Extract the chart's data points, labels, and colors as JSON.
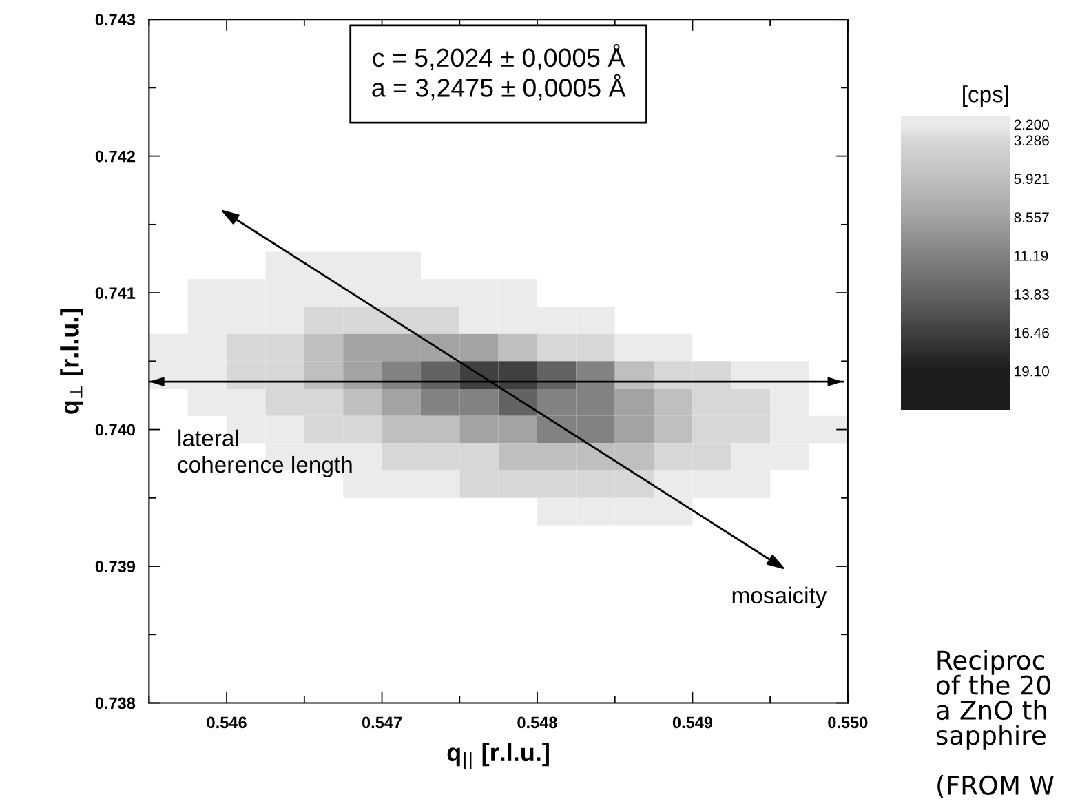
{
  "chart_data": {
    "type": "heatmap",
    "xlabel": "q$_{||}$ [r.l.u.]",
    "ylabel": "q$_{⊥}$ [r.l.u.]",
    "clabel": "[cps]",
    "x": [
      0.545625,
      0.545875,
      0.546125,
      0.546375,
      0.546625,
      0.546875,
      0.547125,
      0.547375,
      0.547625,
      0.547875,
      0.548125,
      0.548375,
      0.548625,
      0.548875,
      0.549125,
      0.549375,
      0.549625,
      0.549875
    ],
    "y": [
      0.7412,
      0.741,
      0.7408,
      0.7406,
      0.7404,
      0.7402,
      0.74,
      0.7398,
      0.7396,
      0.7394
    ],
    "cells": [
      [
        null,
        null,
        null,
        2.2,
        2.2,
        2.2,
        2.2,
        null,
        null,
        null,
        null,
        null,
        null,
        null,
        null,
        null,
        null,
        null
      ],
      [
        null,
        2.2,
        2.2,
        2.2,
        2.2,
        2.2,
        2.2,
        2.2,
        2.2,
        2.2,
        null,
        null,
        null,
        null,
        null,
        null,
        null,
        null
      ],
      [
        null,
        2.2,
        2.2,
        2.2,
        3.286,
        3.286,
        3.286,
        3.286,
        2.2,
        2.2,
        2.2,
        2.2,
        null,
        null,
        null,
        null,
        null,
        null
      ],
      [
        2.2,
        2.2,
        3.286,
        3.286,
        5.921,
        8.557,
        8.557,
        8.557,
        8.557,
        5.921,
        3.286,
        3.286,
        2.2,
        2.2,
        null,
        null,
        null,
        null
      ],
      [
        2.2,
        2.2,
        3.286,
        3.286,
        5.921,
        8.557,
        11.19,
        13.83,
        16.46,
        16.46,
        13.83,
        11.19,
        5.921,
        3.286,
        3.286,
        2.2,
        2.2,
        null
      ],
      [
        null,
        2.2,
        2.2,
        3.286,
        3.286,
        5.921,
        8.557,
        11.19,
        11.19,
        13.83,
        11.19,
        11.19,
        8.557,
        5.921,
        3.286,
        3.286,
        2.2,
        null
      ],
      [
        null,
        null,
        2.2,
        2.2,
        3.286,
        3.286,
        5.921,
        5.921,
        8.557,
        8.557,
        11.19,
        11.19,
        8.557,
        5.921,
        3.286,
        3.286,
        2.2,
        2.2
      ],
      [
        null,
        null,
        null,
        2.2,
        2.2,
        2.2,
        3.286,
        3.286,
        3.286,
        5.921,
        5.921,
        5.921,
        5.921,
        3.286,
        3.286,
        2.2,
        2.2,
        null
      ],
      [
        null,
        null,
        null,
        null,
        null,
        2.2,
        2.2,
        2.2,
        3.286,
        3.286,
        3.286,
        3.286,
        3.286,
        2.2,
        2.2,
        2.2,
        null,
        null
      ],
      [
        null,
        null,
        null,
        null,
        null,
        null,
        null,
        null,
        null,
        null,
        2.2,
        2.2,
        2.2,
        2.2,
        null,
        null,
        null,
        null
      ]
    ],
    "colors": [
      "#ebebeb",
      "#d6d6d6",
      "#bfbfbf",
      "#a3a3a3",
      "#828282",
      "#636363",
      "#404040",
      "#1c1c1c"
    ],
    "clim": [
      1.6,
      21.74
    ],
    "cticks": [
      {
        "value": 2.2,
        "label": "2.200"
      },
      {
        "value": 3.286,
        "label": "3.286"
      },
      {
        "value": 5.921,
        "label": "5.921"
      },
      {
        "value": 8.557,
        "label": "8.557"
      },
      {
        "value": 11.19,
        "label": "11.19"
      },
      {
        "value": 13.83,
        "label": "13.83"
      },
      {
        "value": 16.46,
        "label": "16.46"
      },
      {
        "value": 19.1,
        "label": "19.10"
      }
    ],
    "xlim": [
      0.5455,
      0.55
    ],
    "ylim": [
      0.738,
      0.743
    ],
    "xticks": [
      {
        "value": 0.546,
        "label": "0.546"
      },
      {
        "value": 0.547,
        "label": "0.547"
      },
      {
        "value": 0.548,
        "label": "0.548"
      },
      {
        "value": 0.549,
        "label": "0.549"
      },
      {
        "value": 0.55,
        "label": "0.550"
      }
    ],
    "yticks": [
      {
        "value": 0.738,
        "label": "0.738"
      },
      {
        "value": 0.739,
        "label": "0.739"
      },
      {
        "value": 0.74,
        "label": "0.740"
      },
      {
        "value": 0.741,
        "label": "0.741"
      },
      {
        "value": 0.742,
        "label": "0.742"
      },
      {
        "value": 0.743,
        "label": "0.743"
      }
    ],
    "grid": false,
    "ref_lines": [
      {
        "axis": "y",
        "value": 0.74035,
        "label": "lateral\ncoherence length"
      }
    ],
    "annotations": [
      "c = 5,2024 ± 0,0005 Å\na = 3,2475 ± 0,0005 Å",
      "mosaicity",
      "Reciproc\nof the 20\na ZnO th\nsapphire\n\n(FROM W"
    ]
  }
}
